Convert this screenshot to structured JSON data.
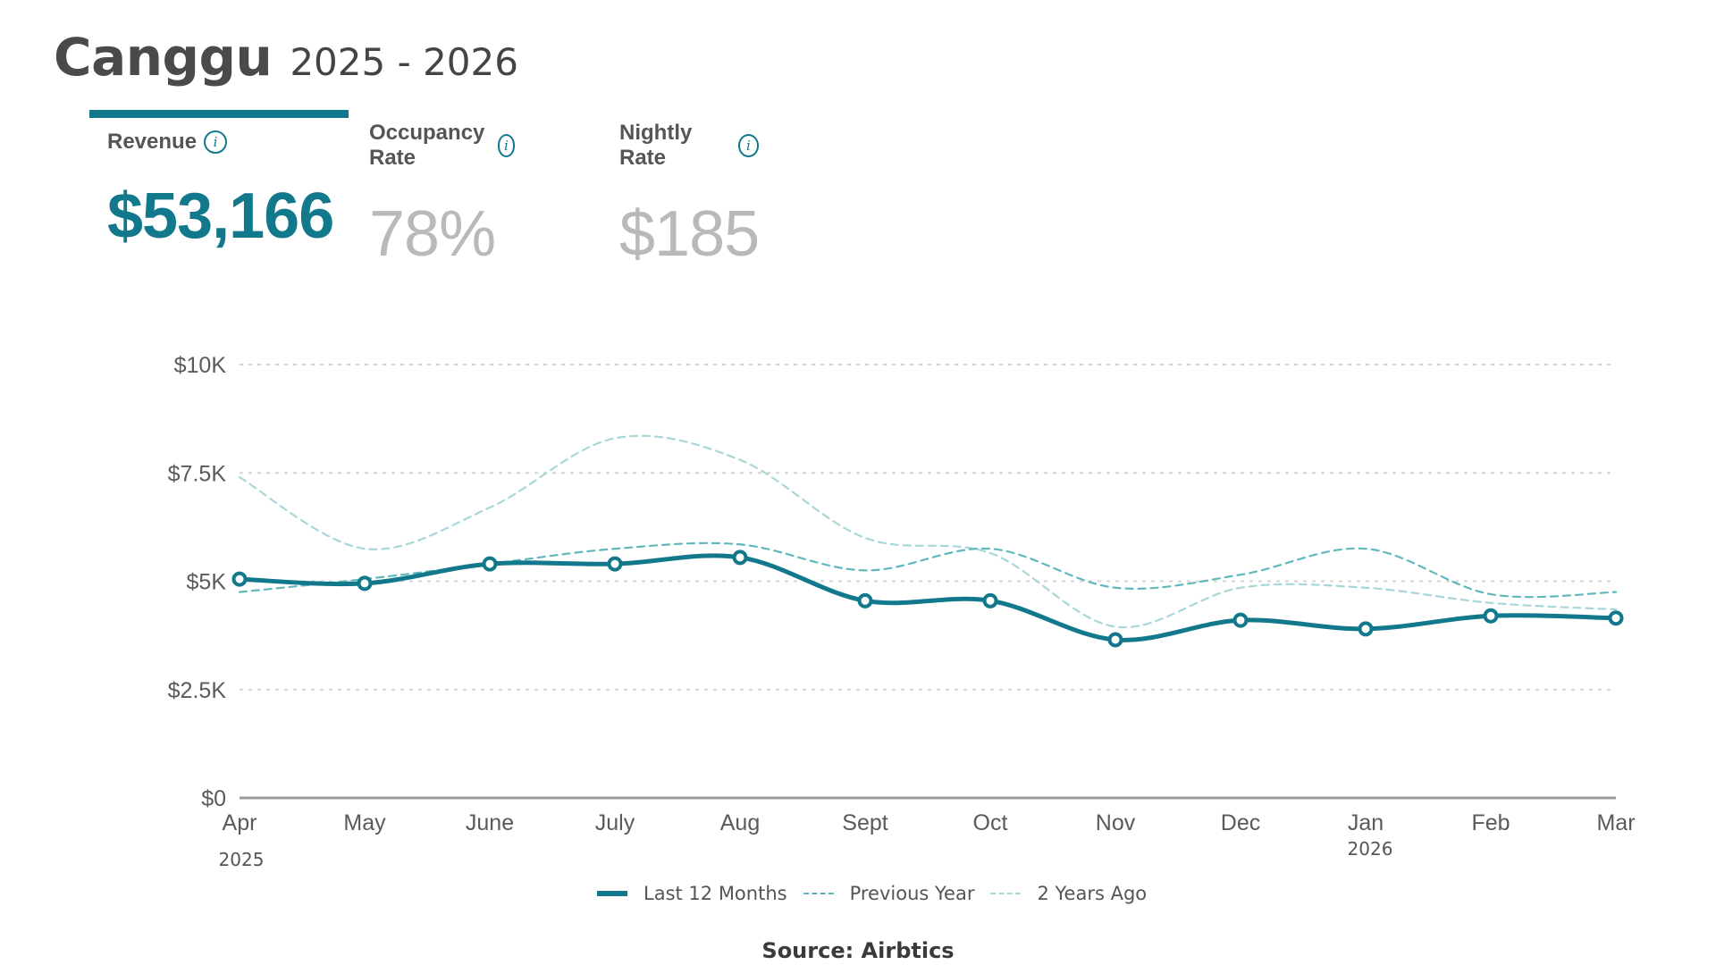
{
  "header": {
    "title": "Canggu",
    "subtitle": "2025 - 2026"
  },
  "tabs": [
    {
      "label": "Revenue",
      "value": "$53,166",
      "active": true
    },
    {
      "label": "Occupancy Rate",
      "value": "78%",
      "active": false
    },
    {
      "label": "Nightly Rate",
      "value": "$185",
      "active": false
    }
  ],
  "icons": {
    "info": "info-icon"
  },
  "colors": {
    "accent": "#12788b",
    "previous_year": "#5fb8bd",
    "two_years_ago": "#a9d6d8"
  },
  "chart_data": {
    "type": "line",
    "categories": [
      "Apr",
      "May",
      "June",
      "July",
      "Aug",
      "Sept",
      "Oct",
      "Nov",
      "Dec",
      "Jan",
      "Feb",
      "Mar"
    ],
    "year_labels": [
      {
        "category": "Apr",
        "label": "2025"
      },
      {
        "category": "Jan",
        "label": "2026"
      }
    ],
    "yticks": [
      "$0",
      "$2.5K",
      "$5K",
      "$7.5K",
      "$10K"
    ],
    "ytick_values": [
      0,
      2500,
      5000,
      7500,
      10000
    ],
    "ylim": [
      0,
      10000
    ],
    "grid": true,
    "series": [
      {
        "name": "Last 12 Months",
        "style": "solid",
        "values": [
          5050,
          4950,
          5400,
          5400,
          5550,
          4550,
          4550,
          3650,
          4100,
          3900,
          4200,
          4150
        ]
      },
      {
        "name": "Previous Year",
        "style": "dashed",
        "values": [
          4750,
          5050,
          5400,
          5750,
          5850,
          5250,
          5750,
          4850,
          5150,
          5750,
          4700,
          4750
        ]
      },
      {
        "name": "2 Years Ago",
        "style": "dashed",
        "values": [
          7400,
          5750,
          6700,
          8300,
          7800,
          6000,
          5650,
          3950,
          4850,
          4850,
          4500,
          4350
        ]
      }
    ],
    "legend_position": "bottom-center"
  },
  "legend": [
    "Last 12 Months",
    "Previous Year",
    "2 Years Ago"
  ],
  "source": "Source: Airbtics"
}
